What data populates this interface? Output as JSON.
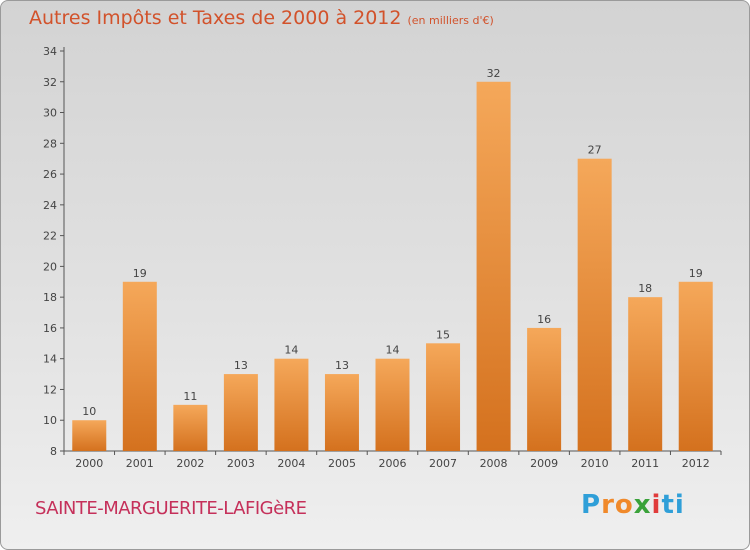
{
  "title": "Autres Impôts et Taxes de 2000 à 2012",
  "subtitle": "(en milliers d'€)",
  "footer": "SAINTE-MARGUERITE-LAFIGèRE",
  "logo": {
    "letters": [
      "P",
      "r",
      "o",
      "x",
      "i",
      "t",
      "i"
    ],
    "colors": [
      "#2f9fd8",
      "#f0892a",
      "#f0892a",
      "#3aa23a",
      "#e03b3b",
      "#2f9fd8",
      "#2f9fd8"
    ]
  },
  "chart_data": {
    "type": "bar",
    "categories": [
      "2000",
      "2001",
      "2002",
      "2003",
      "2004",
      "2005",
      "2006",
      "2007",
      "2008",
      "2009",
      "2010",
      "2011",
      "2012"
    ],
    "values": [
      10,
      19,
      11,
      13,
      14,
      13,
      14,
      15,
      32,
      16,
      27,
      18,
      19
    ],
    "data_labels": [
      "10",
      "19",
      "11",
      "13",
      "14",
      "13",
      "14",
      "15",
      "32",
      "16",
      "27",
      "18",
      "19"
    ],
    "yticks": [
      "8",
      "10",
      "12",
      "14",
      "16",
      "18",
      "20",
      "22",
      "24",
      "26",
      "28",
      "30",
      "32",
      "34"
    ],
    "ylim": [
      8,
      34
    ],
    "grid": false,
    "bar_color_top": "#f5a85a",
    "bar_color_bottom": "#d4711e",
    "text_color": "#444444"
  }
}
